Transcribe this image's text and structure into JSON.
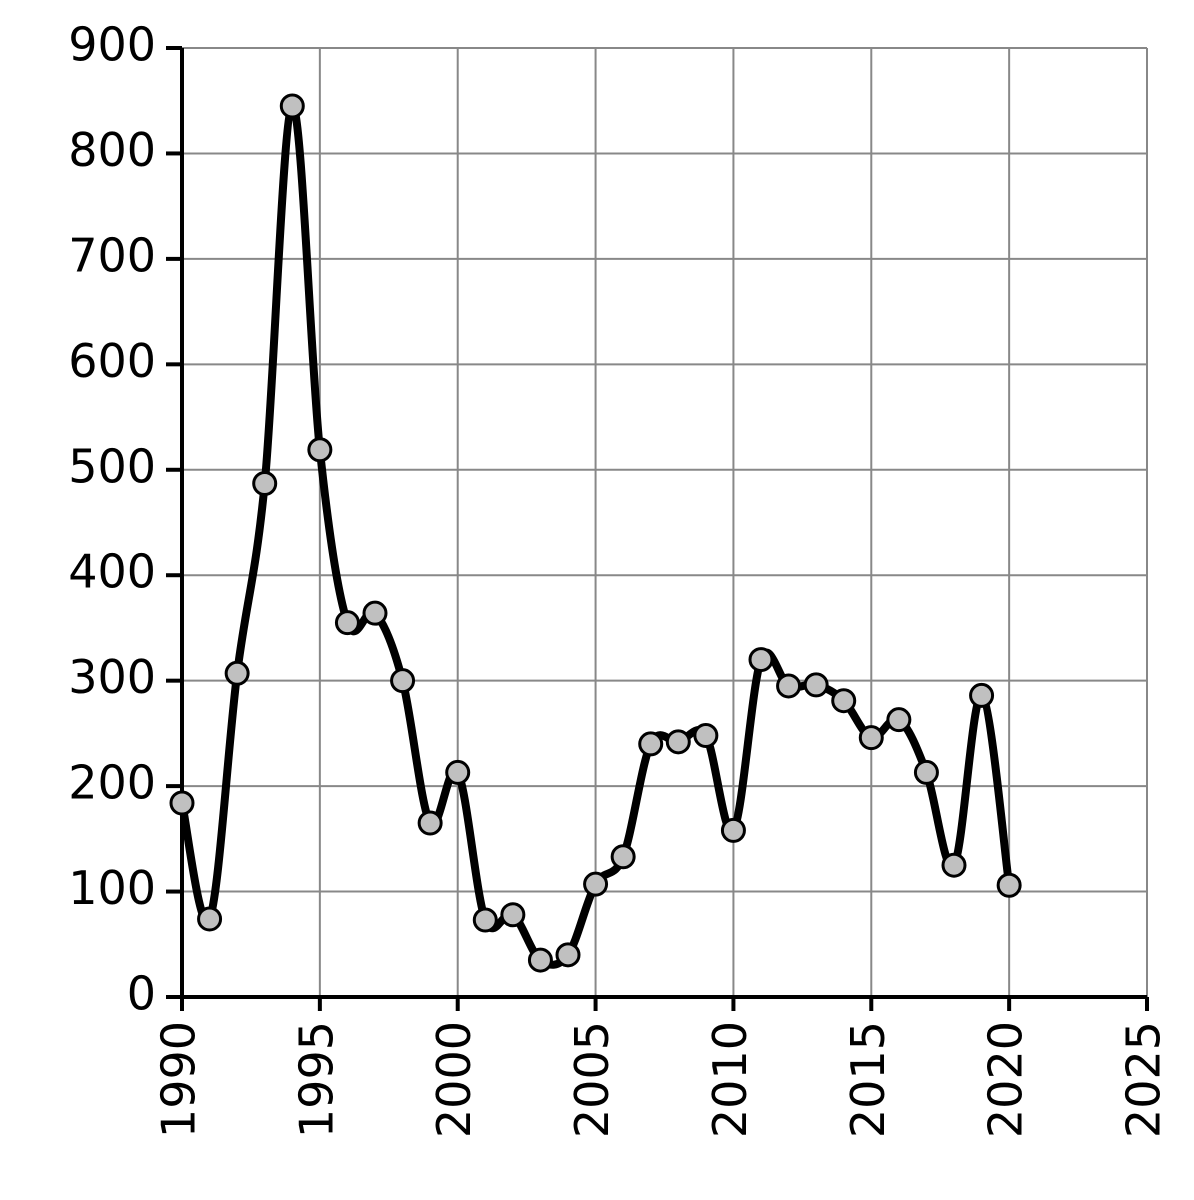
{
  "chart_data": {
    "type": "line",
    "x": [
      1990,
      1991,
      1992,
      1993,
      1994,
      1995,
      1996,
      1997,
      1998,
      1999,
      2000,
      2001,
      2002,
      2003,
      2004,
      2005,
      2006,
      2007,
      2008,
      2009,
      2010,
      2011,
      2012,
      2013,
      2014,
      2015,
      2016,
      2017,
      2018,
      2019,
      2020
    ],
    "values": [
      184,
      74,
      307,
      487,
      845,
      519,
      355,
      364,
      300,
      165,
      213,
      73,
      78,
      35,
      40,
      107,
      133,
      240,
      242,
      248,
      158,
      320,
      295,
      296,
      281,
      246,
      263,
      213,
      125,
      286,
      106
    ],
    "color": "#000000",
    "marker_color": "#c0c0c0",
    "xlim": [
      1990,
      2025
    ],
    "xticks": [
      1990,
      1995,
      2000,
      2005,
      2010,
      2015,
      2020,
      2025
    ],
    "ylim": [
      0,
      900
    ],
    "yticks": [
      0,
      100,
      200,
      300,
      400,
      500,
      600,
      700,
      800,
      900
    ],
    "grid": true
  }
}
